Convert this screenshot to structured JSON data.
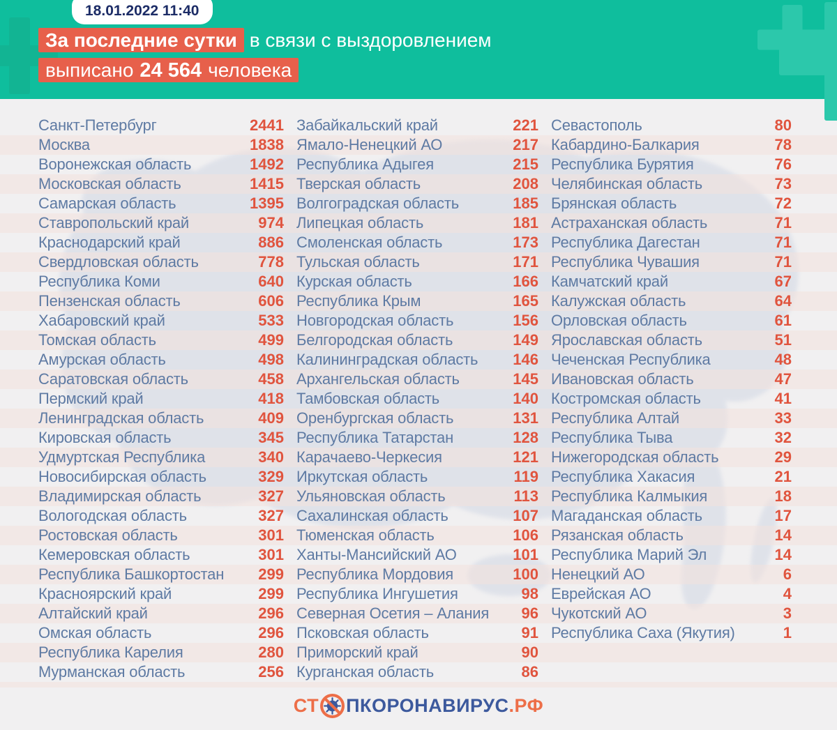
{
  "header": {
    "date": "18.01.2022 11:40",
    "headline_highlight": "За последние сутки",
    "headline_rest": "в связи с выздоровлением",
    "line2_prefix": "выписано",
    "line2_number": "24 564",
    "line2_suffix": "человека"
  },
  "footer": {
    "logo_prefix": "СТ",
    "logo_middle": "ПКОРОНАВИРУС",
    "logo_suffix": ".РФ",
    "logo_icon": "no-virus-icon"
  },
  "colors": {
    "header_teal": "#0fbe9d",
    "plus_light": "#2cc8ab",
    "plus_dark": "#12b493",
    "highlight_orange": "#e7604b",
    "value_orange": "#e0543e",
    "region_blue": "#5e7aa3",
    "date_navy": "#1c2c66",
    "body_bg": "#f1f0f1",
    "map_gray": "#dbdfe8",
    "logo_blue": "#3c599d",
    "logo_orange": "#ed6e48"
  },
  "chart_data": {
    "type": "table",
    "title": "За последние сутки в связи с выздоровлением выписано 24 564 человека",
    "total_discharged": 24564,
    "date": "18.01.2022 11:40",
    "columns": [
      [
        {
          "name": "Санкт-Петербург",
          "value": "2441"
        },
        {
          "name": "Москва",
          "value": "1838"
        },
        {
          "name": "Воронежская область",
          "value": "1492"
        },
        {
          "name": "Московская область",
          "value": "1415"
        },
        {
          "name": "Самарская область",
          "value": "1395"
        },
        {
          "name": "Ставропольский край",
          "value": "974"
        },
        {
          "name": "Краснодарский край",
          "value": "886"
        },
        {
          "name": "Свердловская область",
          "value": "778"
        },
        {
          "name": "Республика Коми",
          "value": "640"
        },
        {
          "name": "Пензенская область",
          "value": "606"
        },
        {
          "name": "Хабаровский край",
          "value": "533"
        },
        {
          "name": "Томская область",
          "value": "499"
        },
        {
          "name": "Амурская область",
          "value": "498"
        },
        {
          "name": "Саратовская область",
          "value": "458"
        },
        {
          "name": "Пермский край",
          "value": "418"
        },
        {
          "name": "Ленинградская область",
          "value": "409"
        },
        {
          "name": "Кировская область",
          "value": "345"
        },
        {
          "name": "Удмуртская Республика",
          "value": "340"
        },
        {
          "name": "Новосибирская область",
          "value": "329"
        },
        {
          "name": "Владимирская область",
          "value": "327"
        },
        {
          "name": "Вологодская область",
          "value": "327"
        },
        {
          "name": "Ростовская область",
          "value": "301"
        },
        {
          "name": "Кемеровская область",
          "value": "301"
        },
        {
          "name": "Республика Башкортостан",
          "value": "299"
        },
        {
          "name": "Красноярский край",
          "value": "299"
        },
        {
          "name": "Алтайский край",
          "value": "296"
        },
        {
          "name": "Омская область",
          "value": "296"
        },
        {
          "name": "Республика Карелия",
          "value": "280"
        },
        {
          "name": "Мурманская область",
          "value": "256"
        }
      ],
      [
        {
          "name": "Забайкальский край",
          "value": "221"
        },
        {
          "name": "Ямало-Ненецкий АО",
          "value": "217"
        },
        {
          "name": "Республика Адыгея",
          "value": "215"
        },
        {
          "name": "Тверская область",
          "value": "208"
        },
        {
          "name": "Волгоградская область",
          "value": "185"
        },
        {
          "name": "Липецкая область",
          "value": "181"
        },
        {
          "name": "Смоленская область",
          "value": "173"
        },
        {
          "name": "Тульская область",
          "value": "171"
        },
        {
          "name": "Курская область",
          "value": "166"
        },
        {
          "name": "Республика Крым",
          "value": "165"
        },
        {
          "name": "Новгородская область",
          "value": "156"
        },
        {
          "name": "Белгородская область",
          "value": "149"
        },
        {
          "name": "Калининградская область",
          "value": "146"
        },
        {
          "name": "Архангельская область",
          "value": "145"
        },
        {
          "name": "Тамбовская область",
          "value": "140"
        },
        {
          "name": "Оренбургская область",
          "value": "131"
        },
        {
          "name": "Республика Татарстан",
          "value": "128"
        },
        {
          "name": "Карачаево-Черкесия",
          "value": "121"
        },
        {
          "name": "Иркутская область",
          "value": "119"
        },
        {
          "name": "Ульяновская область",
          "value": "113"
        },
        {
          "name": "Сахалинская область",
          "value": "107"
        },
        {
          "name": "Тюменская область",
          "value": "106"
        },
        {
          "name": "Ханты-Мансийский АО",
          "value": "101"
        },
        {
          "name": "Республика Мордовия",
          "value": "100"
        },
        {
          "name": "Республика Ингушетия",
          "value": "98"
        },
        {
          "name": "Северная Осетия – Алания",
          "value": "96"
        },
        {
          "name": "Псковская область",
          "value": "91"
        },
        {
          "name": "Приморский край",
          "value": "90"
        },
        {
          "name": "Курганская область",
          "value": "86"
        }
      ],
      [
        {
          "name": "Севастополь",
          "value": "80"
        },
        {
          "name": "Кабардино-Балкария",
          "value": "78"
        },
        {
          "name": "Республика Бурятия",
          "value": "76"
        },
        {
          "name": "Челябинская область",
          "value": "73"
        },
        {
          "name": "Брянская область",
          "value": "72"
        },
        {
          "name": "Астраханская область",
          "value": "71"
        },
        {
          "name": "Республика Дагестан",
          "value": "71"
        },
        {
          "name": "Республика Чувашия",
          "value": "71"
        },
        {
          "name": "Камчатский край",
          "value": "67"
        },
        {
          "name": "Калужская область",
          "value": "64"
        },
        {
          "name": "Орловская область",
          "value": "61"
        },
        {
          "name": "Ярославская область",
          "value": "51"
        },
        {
          "name": "Чеченская Республика",
          "value": "48"
        },
        {
          "name": "Ивановская область",
          "value": "47"
        },
        {
          "name": "Костромская область",
          "value": "41"
        },
        {
          "name": "Республика Алтай",
          "value": "33"
        },
        {
          "name": "Республика Тыва",
          "value": "32"
        },
        {
          "name": "Нижегородская область",
          "value": "29"
        },
        {
          "name": "Республика Хакасия",
          "value": "21"
        },
        {
          "name": "Республика Калмыкия",
          "value": "18"
        },
        {
          "name": "Магаданская область",
          "value": "17"
        },
        {
          "name": "Рязанская область",
          "value": "14"
        },
        {
          "name": "Республика Марий Эл",
          "value": "14"
        },
        {
          "name": "Ненецкий АО",
          "value": "6"
        },
        {
          "name": "Еврейская АО",
          "value": "4"
        },
        {
          "name": "Чукотский АО",
          "value": "3"
        },
        {
          "name": "Республика Саха (Якутия)",
          "value": "1"
        }
      ]
    ]
  }
}
